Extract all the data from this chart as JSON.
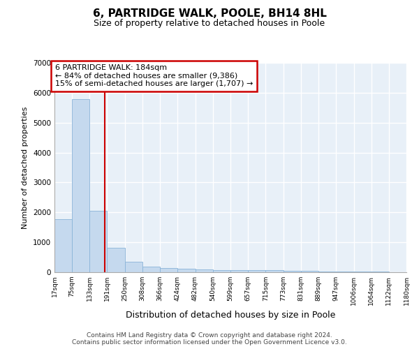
{
  "title": "6, PARTRIDGE WALK, POOLE, BH14 8HL",
  "subtitle": "Size of property relative to detached houses in Poole",
  "xlabel": "Distribution of detached houses by size in Poole",
  "ylabel": "Number of detached properties",
  "bar_color": "#c5d9ee",
  "bar_edge_color": "#8ab4d8",
  "fig_bg_color": "#ffffff",
  "ax_bg_color": "#e8f0f8",
  "grid_color": "#ffffff",
  "vline_color": "#cc0000",
  "vline_x": 184,
  "annotation_line1": "6 PARTRIDGE WALK: 184sqm",
  "annotation_line2": "← 84% of detached houses are smaller (9,386)",
  "annotation_line3": "15% of semi-detached houses are larger (1,707) →",
  "annotation_box_facecolor": "#ffffff",
  "annotation_box_edgecolor": "#cc0000",
  "footer_text": "Contains HM Land Registry data © Crown copyright and database right 2024.\nContains public sector information licensed under the Open Government Licence v3.0.",
  "bin_edges": [
    17,
    75,
    133,
    191,
    250,
    308,
    366,
    424,
    482,
    540,
    599,
    657,
    715,
    773,
    831,
    889,
    947,
    1006,
    1064,
    1122,
    1180
  ],
  "bar_heights": [
    1780,
    5780,
    2060,
    820,
    340,
    195,
    135,
    115,
    100,
    80,
    70,
    65,
    60,
    55,
    45,
    35,
    25,
    20,
    15,
    10
  ],
  "ylim": [
    0,
    7000
  ],
  "yticks": [
    0,
    1000,
    2000,
    3000,
    4000,
    5000,
    6000,
    7000
  ]
}
